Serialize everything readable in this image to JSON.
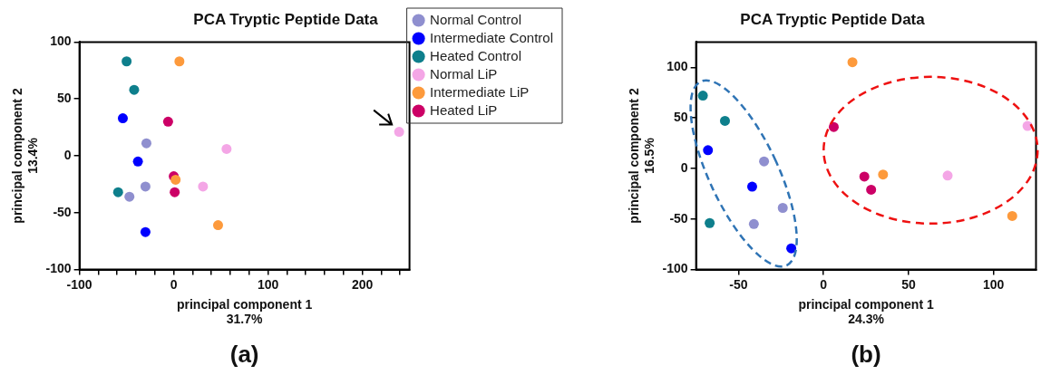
{
  "chart_data": [
    {
      "type": "scatter",
      "title": "PCA Tryptic Peptide Data",
      "xlabel": "principal component 1\n31.7%",
      "ylabel": "principal component 2\n13.4%",
      "annotations": [
        "(a)"
      ],
      "xlim": [
        -100,
        250
      ],
      "xticks": [
        -100,
        {
          "value": -80,
          "label": null
        },
        {
          "value": -60,
          "label": null
        },
        {
          "value": -40,
          "label": null
        },
        {
          "value": -20,
          "label": null
        },
        0,
        {
          "value": 20,
          "label": null
        },
        {
          "value": 40,
          "label": null
        },
        {
          "value": 60,
          "label": null
        },
        {
          "value": 80,
          "label": null
        },
        100,
        {
          "value": 120,
          "label": null
        },
        {
          "value": 140,
          "label": null
        },
        {
          "value": 160,
          "label": null
        },
        {
          "value": 180,
          "label": null
        },
        200,
        {
          "value": 220,
          "label": null
        },
        {
          "value": 240,
          "label": null
        }
      ],
      "ylim": [
        -100,
        100
      ],
      "yticks": [
        -100,
        -50,
        0,
        50,
        100
      ],
      "grid": false,
      "legend": "right",
      "marker": "circle",
      "series": [
        {
          "name": "Normal Control",
          "color": "#8f8fcf",
          "x": [
            -29,
            -30,
            -47
          ],
          "values": [
            11,
            -27,
            -36
          ]
        },
        {
          "name": "Intermediate Control",
          "color": "#0000ff",
          "x": [
            -54,
            -38,
            -30
          ],
          "values": [
            33,
            -5,
            -67
          ]
        },
        {
          "name": "Heated Control",
          "color": "#0e7f8c",
          "x": [
            -50,
            -42,
            -59
          ],
          "values": [
            83,
            58,
            -32
          ]
        },
        {
          "name": "Normal LiP",
          "color": "#f4a6e6",
          "x": [
            239,
            56,
            31
          ],
          "values": [
            21,
            6,
            -27
          ]
        },
        {
          "name": "Intermediate LiP",
          "color": "#fd9a3c",
          "x": [
            6,
            2,
            47
          ],
          "values": [
            83,
            -21,
            -61
          ]
        },
        {
          "name": "Heated LiP",
          "color": "#cc0066",
          "x": [
            -6,
            0,
            1
          ],
          "values": [
            30,
            -18,
            -32
          ]
        }
      ]
    },
    {
      "type": "scatter",
      "title": "PCA Tryptic Peptide Data",
      "xlabel": "principal component 1\n24.3%",
      "ylabel": "principal component 2\n16.5%",
      "annotations": [
        "(b)"
      ],
      "xlim": [
        -75,
        125
      ],
      "xticks": [
        -50,
        0,
        50,
        100
      ],
      "ylim": [
        -100,
        125
      ],
      "yticks": [
        -100,
        -50,
        0,
        50,
        100
      ],
      "grid": false,
      "marker": "circle",
      "series": [
        {
          "color": "#8f8fcf",
          "x": [
            -35,
            -24,
            -41
          ],
          "values": [
            7,
            -39,
            -55
          ]
        },
        {
          "color": "#0000ff",
          "x": [
            -68,
            -42,
            -19
          ],
          "values": [
            18,
            -18,
            -79
          ]
        },
        {
          "color": "#0e7f8c",
          "x": [
            -71,
            -58,
            -67
          ],
          "values": [
            72,
            47,
            -54
          ]
        },
        {
          "color": "#f4a6e6",
          "x": [
            120,
            73
          ],
          "values": [
            42,
            -7
          ]
        },
        {
          "color": "#fd9a3c",
          "x": [
            17,
            35,
            111
          ],
          "values": [
            105,
            -6,
            -47
          ]
        },
        {
          "color": "#cc0066",
          "x": [
            6,
            24,
            28
          ],
          "values": [
            41,
            -8,
            -21
          ]
        }
      ]
    }
  ]
}
